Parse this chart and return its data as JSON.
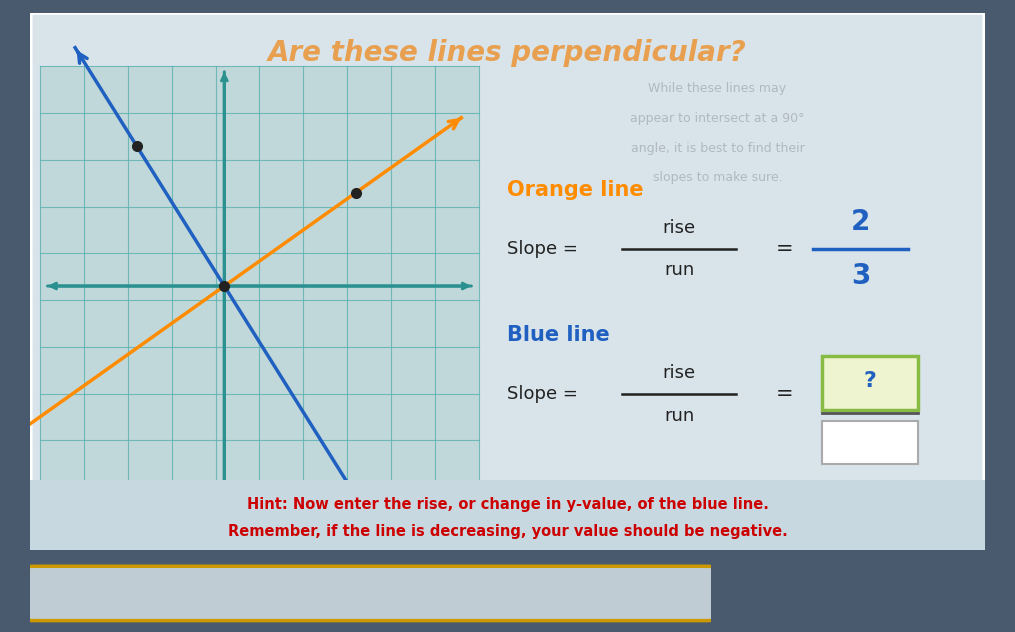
{
  "title": "Are these lines perpendicular?",
  "title_color": "#e8a050",
  "bg_outer": "#4a5a6e",
  "bg_card": "#dce6ea",
  "subtitle_lines": [
    "While these lines may",
    "appear to intersect at a 90°",
    "angle, it is best to find their",
    "slopes to make sure."
  ],
  "subtitle_color": "#b0b8c0",
  "orange_label": "Orange line",
  "orange_color": "#FF8C00",
  "blue_label": "Blue line",
  "blue_color": "#2060c0",
  "grid_color": "#5ab0b0",
  "axis_color": "#2a9090",
  "hint_text1": "Hint: Now enter the rise, or change in y-value, of the blue line.",
  "hint_text2": "Remember, if the line is decreasing, your value should be negative.",
  "hint_color": "#cc0000",
  "slope_text_color": "#222222",
  "question_box_border": "#88bb44",
  "question_mark_color": "#2060c0",
  "denom_box_color": "#e0e0e0",
  "denom_box_border": "#aaaaaa",
  "orange_slope_num": "2",
  "orange_slope_den": "3",
  "card_bg": "#d8e4ea",
  "graph_bg": "#b8d4d4"
}
